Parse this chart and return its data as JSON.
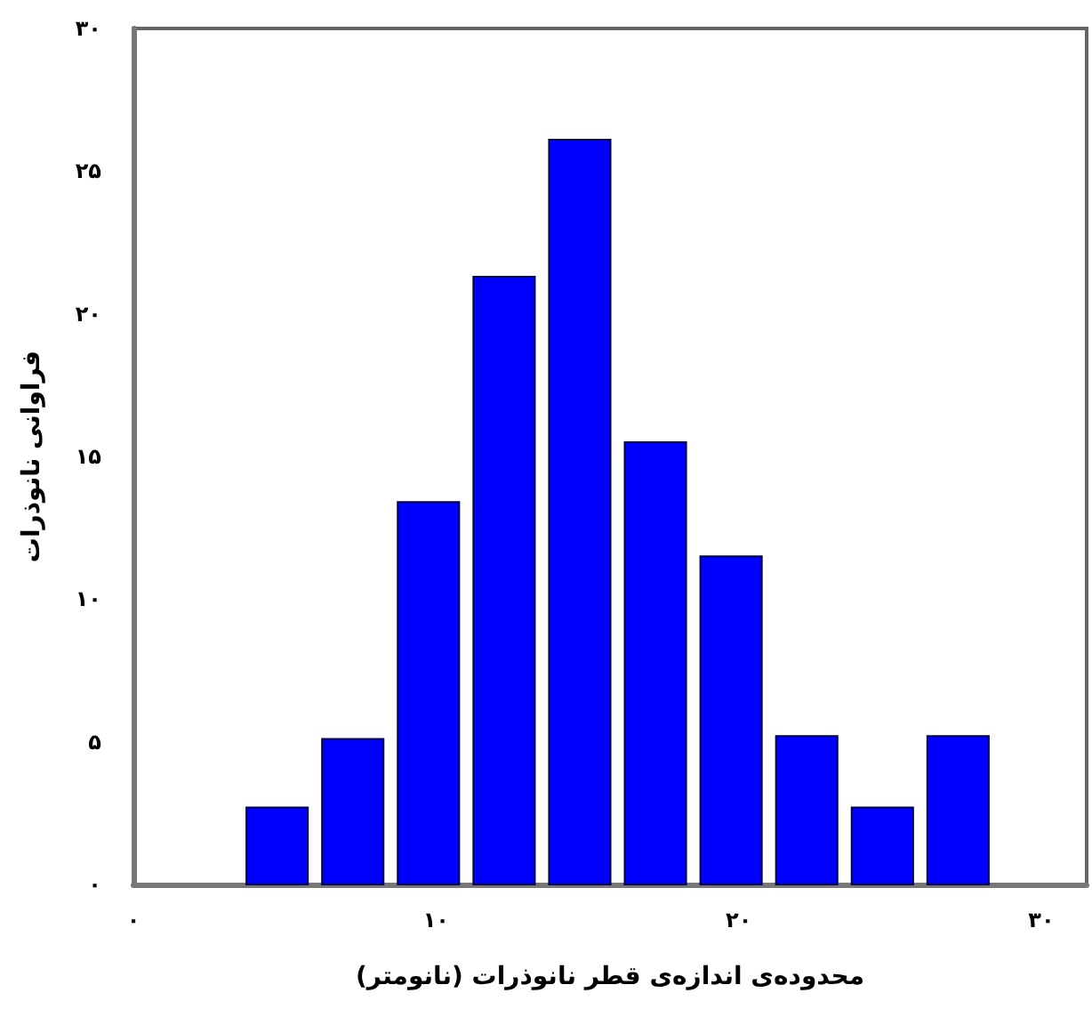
{
  "chart_data": {
    "type": "histogram",
    "xlabel": "محدوده‌ی اندازه‌ی قطر نانوذرات (نانومتر)",
    "ylabel": "فراوانی نانوذرات",
    "bins": [
      3.5,
      6,
      8.5,
      11,
      13.5,
      16,
      18.5,
      21,
      23.5,
      26,
      28.5
    ],
    "values": [
      2.7,
      5.1,
      13.4,
      21.3,
      26.1,
      15.5,
      11.5,
      5.2,
      2.7,
      5.2
    ],
    "color": "#0000ff",
    "xlim": [
      0,
      31.5
    ],
    "xticks": [
      {
        "value": 0,
        "label": "۰"
      },
      {
        "value": 10,
        "label": "۱۰"
      },
      {
        "value": 20,
        "label": "۲۰"
      },
      {
        "value": 30,
        "label": "۳۰"
      }
    ],
    "ylim": [
      0,
      30
    ],
    "yticks": [
      {
        "value": 0,
        "label": "۰"
      },
      {
        "value": 5,
        "label": "۵"
      },
      {
        "value": 10,
        "label": "۱۰"
      },
      {
        "value": 15,
        "label": "۱۵"
      },
      {
        "value": 20,
        "label": "۲۰"
      },
      {
        "value": 25,
        "label": "۲۵"
      },
      {
        "value": 30,
        "label": "۳۰"
      }
    ]
  }
}
